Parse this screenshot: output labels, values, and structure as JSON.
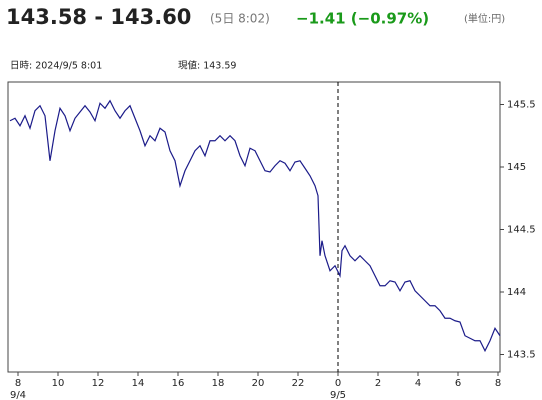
{
  "header": {
    "price": "143.58 - 143.60",
    "time": "(5日 8:02)",
    "change": "−1.41 (−0.97%)",
    "unit": "(単位:円)"
  },
  "info": {
    "datetime": "日時: 2024/9/5  8:01",
    "current": "現値: 143.59"
  },
  "chart_data": {
    "type": "line",
    "x": [
      7.6,
      7.85,
      8.1,
      8.35,
      8.6,
      8.85,
      9.1,
      9.35,
      9.6,
      9.85,
      10.1,
      10.35,
      10.6,
      10.85,
      11.1,
      11.35,
      11.6,
      11.85,
      12.1,
      12.35,
      12.6,
      12.85,
      13.1,
      13.35,
      13.6,
      13.85,
      14.1,
      14.35,
      14.6,
      14.85,
      15.1,
      15.35,
      15.6,
      15.85,
      16.1,
      16.35,
      16.6,
      16.85,
      17.1,
      17.35,
      17.6,
      17.85,
      18.1,
      18.35,
      18.6,
      18.85,
      19.1,
      19.35,
      19.6,
      19.85,
      20.1,
      20.35,
      20.6,
      20.85,
      21.1,
      21.35,
      21.6,
      21.85,
      22.1,
      22.35,
      22.6,
      22.85,
      23.0,
      23.1,
      23.2,
      23.35,
      23.6,
      23.85,
      24.1,
      24.2,
      24.35,
      24.6,
      24.85,
      25.1,
      25.35,
      25.6,
      25.85,
      26.1,
      26.35,
      26.6,
      26.85,
      27.1,
      27.35,
      27.6,
      27.85,
      28.1,
      28.35,
      28.6,
      28.85,
      29.1,
      29.35,
      29.6,
      29.85,
      30.1,
      30.35,
      30.6,
      30.85,
      31.1,
      31.35,
      31.6,
      31.85,
      32.1
    ],
    "series": [
      {
        "color": "#1c1c8a",
        "values": [
          145.37,
          145.39,
          145.33,
          145.41,
          145.31,
          145.45,
          145.49,
          145.41,
          145.05,
          145.29,
          145.47,
          145.41,
          145.29,
          145.39,
          145.44,
          145.49,
          145.44,
          145.37,
          145.51,
          145.47,
          145.53,
          145.45,
          145.39,
          145.45,
          145.49,
          145.39,
          145.29,
          145.17,
          145.25,
          145.21,
          145.31,
          145.28,
          145.13,
          145.05,
          144.85,
          144.97,
          145.05,
          145.13,
          145.17,
          145.09,
          145.21,
          145.21,
          145.25,
          145.21,
          145.25,
          145.21,
          145.09,
          145.01,
          145.15,
          145.13,
          145.05,
          144.97,
          144.96,
          145.01,
          145.05,
          145.03,
          144.97,
          145.04,
          145.05,
          144.99,
          144.93,
          144.85,
          144.77,
          144.29,
          144.41,
          144.29,
          144.17,
          144.21,
          144.13,
          144.33,
          144.37,
          144.29,
          144.25,
          144.29,
          144.25,
          144.21,
          144.13,
          144.05,
          144.05,
          144.09,
          144.08,
          144.01,
          144.08,
          144.09,
          144.01,
          143.97,
          143.93,
          143.89,
          143.89,
          143.85,
          143.79,
          143.79,
          143.77,
          143.76,
          143.65,
          143.63,
          143.61,
          143.61,
          143.53,
          143.61,
          143.71,
          143.65
        ]
      }
    ],
    "xlim": [
      7.5,
      32.1
    ],
    "xticks": [
      8,
      10,
      12,
      14,
      16,
      18,
      20,
      22,
      {
        "value": 24,
        "label": "0"
      },
      {
        "value": 26,
        "label": "2"
      },
      {
        "value": 28,
        "label": "4"
      },
      {
        "value": 30,
        "label": "6"
      },
      {
        "value": 32,
        "label": "8"
      }
    ],
    "date_labels": [
      {
        "value": 8,
        "label": "9/4"
      },
      {
        "value": 24,
        "label": "9/5"
      }
    ],
    "day_divider": 24,
    "ylim": [
      143.36,
      145.68
    ],
    "yticks": [
      145.5,
      145,
      144.5,
      144,
      143.5
    ]
  }
}
